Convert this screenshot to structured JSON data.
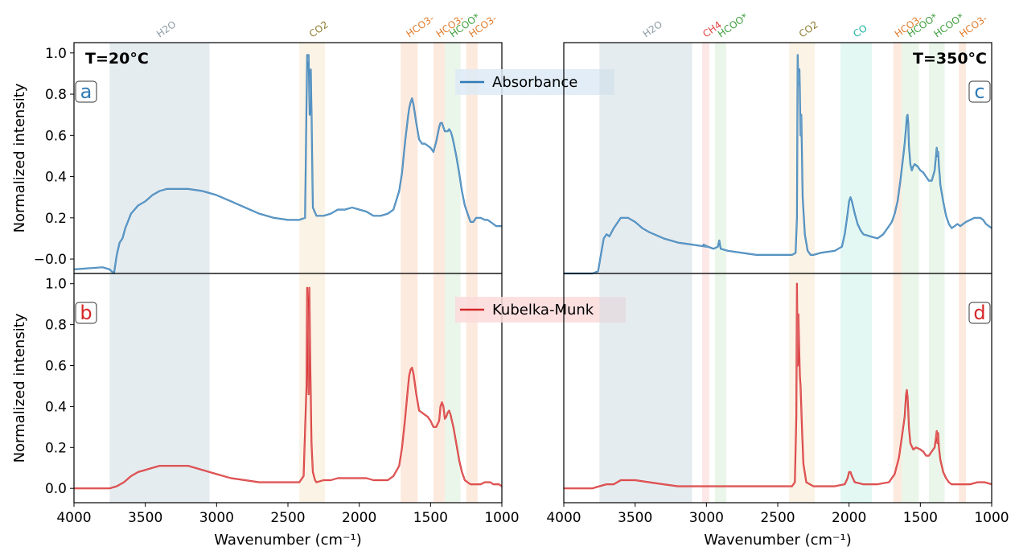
{
  "chart_data": [
    {
      "panel_label": "a",
      "type": "line",
      "temperature_label": "T=20°C",
      "legend": "Absorbance",
      "series_color": "#2f7ab5",
      "ylabel": "Normalized intensity",
      "xlabel": "",
      "xlim": [
        4000,
        1000
      ],
      "ylim": [
        -0.07,
        1.05
      ],
      "yticks": [
        "−0.0",
        "0.2",
        "0.4",
        "0.6",
        "0.8",
        "1.0"
      ],
      "xticks": [],
      "bands": [
        {
          "label": "H2O",
          "from": 3750,
          "to": 3050,
          "color": "#cfdde4",
          "label_color": "#8a9aa3"
        },
        {
          "label": "CO2",
          "from": 2420,
          "to": 2240,
          "color": "#f7e9cf",
          "label_color": "#8c7a2f"
        },
        {
          "label": "HCO3-",
          "from": 1710,
          "to": 1590,
          "color": "#fbd9c4",
          "label_color": "#e07a2a"
        },
        {
          "label": "HCO3-",
          "from": 1480,
          "to": 1400,
          "color": "#fbd9c4",
          "label_color": "#e07a2a"
        },
        {
          "label": "HCOO*",
          "from": 1400,
          "to": 1290,
          "color": "#d9eed7",
          "label_color": "#3e9e3e"
        },
        {
          "label": "HCO3-",
          "from": 1250,
          "to": 1170,
          "color": "#fbd9c4",
          "label_color": "#e07a2a"
        }
      ],
      "x": [
        4000,
        3800,
        3750,
        3720,
        3700,
        3680,
        3660,
        3640,
        3600,
        3550,
        3500,
        3450,
        3400,
        3350,
        3300,
        3250,
        3200,
        3100,
        3000,
        2900,
        2800,
        2700,
        2600,
        2500,
        2420,
        2380,
        2365,
        2360,
        2355,
        2348,
        2340,
        2335,
        2325,
        2300,
        2250,
        2200,
        2150,
        2100,
        2050,
        2000,
        1950,
        1900,
        1850,
        1800,
        1760,
        1720,
        1700,
        1680,
        1660,
        1650,
        1640,
        1630,
        1620,
        1600,
        1580,
        1560,
        1540,
        1520,
        1500,
        1480,
        1460,
        1440,
        1430,
        1420,
        1410,
        1400,
        1390,
        1380,
        1370,
        1360,
        1350,
        1340,
        1320,
        1300,
        1280,
        1260,
        1240,
        1220,
        1200,
        1180,
        1150,
        1120,
        1100,
        1080,
        1060,
        1040,
        1020,
        1000
      ],
      "y": [
        -0.05,
        -0.04,
        -0.05,
        -0.07,
        0.02,
        0.08,
        0.1,
        0.15,
        0.22,
        0.26,
        0.28,
        0.31,
        0.33,
        0.34,
        0.34,
        0.34,
        0.34,
        0.33,
        0.31,
        0.28,
        0.25,
        0.22,
        0.2,
        0.19,
        0.19,
        0.2,
        0.99,
        0.96,
        0.99,
        0.7,
        0.92,
        0.72,
        0.25,
        0.21,
        0.21,
        0.22,
        0.24,
        0.24,
        0.25,
        0.24,
        0.23,
        0.21,
        0.21,
        0.22,
        0.24,
        0.33,
        0.42,
        0.56,
        0.68,
        0.73,
        0.76,
        0.78,
        0.75,
        0.66,
        0.58,
        0.56,
        0.56,
        0.55,
        0.54,
        0.52,
        0.57,
        0.64,
        0.66,
        0.66,
        0.64,
        0.62,
        0.62,
        0.62,
        0.63,
        0.62,
        0.6,
        0.57,
        0.5,
        0.42,
        0.33,
        0.26,
        0.22,
        0.18,
        0.18,
        0.2,
        0.2,
        0.19,
        0.19,
        0.18,
        0.17,
        0.16,
        0.16,
        0.16
      ]
    },
    {
      "panel_label": "b",
      "type": "line",
      "temperature_label": "",
      "legend": "Kubelka-Munk",
      "series_color": "#d62728",
      "ylabel": "Normalized intensity",
      "xlabel": "Wavenumber (cm⁻¹)",
      "xlim": [
        4000,
        1000
      ],
      "ylim": [
        -0.07,
        1.05
      ],
      "yticks": [
        "0.0",
        "0.2",
        "0.4",
        "0.6",
        "0.8",
        "1.0"
      ],
      "xticks": [
        "4000",
        "3500",
        "3000",
        "2500",
        "2000",
        "1500",
        "1000"
      ],
      "bands": [
        {
          "label": "",
          "from": 3750,
          "to": 3050,
          "color": "#cfdde4"
        },
        {
          "label": "",
          "from": 2420,
          "to": 2240,
          "color": "#f7e9cf"
        },
        {
          "label": "",
          "from": 1710,
          "to": 1590,
          "color": "#fbd9c4"
        },
        {
          "label": "",
          "from": 1480,
          "to": 1400,
          "color": "#fbd9c4"
        },
        {
          "label": "",
          "from": 1400,
          "to": 1290,
          "color": "#d9eed7"
        },
        {
          "label": "",
          "from": 1250,
          "to": 1170,
          "color": "#fbd9c4"
        }
      ],
      "x": [
        4000,
        3800,
        3750,
        3700,
        3650,
        3600,
        3550,
        3500,
        3450,
        3400,
        3350,
        3300,
        3250,
        3200,
        3150,
        3100,
        3000,
        2900,
        2800,
        2700,
        2600,
        2500,
        2420,
        2390,
        2370,
        2365,
        2360,
        2355,
        2350,
        2345,
        2340,
        2335,
        2325,
        2310,
        2300,
        2250,
        2200,
        2150,
        2100,
        2050,
        2000,
        1950,
        1900,
        1850,
        1800,
        1760,
        1720,
        1700,
        1680,
        1660,
        1650,
        1640,
        1630,
        1620,
        1600,
        1580,
        1560,
        1540,
        1520,
        1500,
        1480,
        1460,
        1440,
        1430,
        1420,
        1410,
        1400,
        1390,
        1380,
        1370,
        1360,
        1350,
        1340,
        1320,
        1300,
        1280,
        1260,
        1240,
        1220,
        1200,
        1180,
        1150,
        1120,
        1100,
        1080,
        1060,
        1040,
        1020,
        1000
      ],
      "y": [
        0.0,
        0.0,
        0.0,
        0.01,
        0.03,
        0.06,
        0.08,
        0.09,
        0.1,
        0.11,
        0.11,
        0.11,
        0.11,
        0.11,
        0.1,
        0.09,
        0.07,
        0.05,
        0.04,
        0.03,
        0.03,
        0.03,
        0.03,
        0.06,
        0.5,
        0.98,
        0.85,
        0.46,
        0.98,
        0.7,
        0.45,
        0.22,
        0.08,
        0.04,
        0.03,
        0.04,
        0.04,
        0.05,
        0.05,
        0.05,
        0.05,
        0.05,
        0.04,
        0.04,
        0.04,
        0.06,
        0.11,
        0.2,
        0.33,
        0.48,
        0.55,
        0.58,
        0.59,
        0.56,
        0.46,
        0.38,
        0.37,
        0.36,
        0.35,
        0.33,
        0.3,
        0.3,
        0.33,
        0.4,
        0.42,
        0.4,
        0.34,
        0.35,
        0.37,
        0.38,
        0.36,
        0.33,
        0.3,
        0.22,
        0.14,
        0.08,
        0.04,
        0.03,
        0.02,
        0.02,
        0.02,
        0.02,
        0.03,
        0.03,
        0.03,
        0.02,
        0.02,
        0.02,
        0.01
      ]
    },
    {
      "panel_label": "c",
      "type": "line",
      "temperature_label": "T=350°C",
      "legend": "",
      "series_color": "#2f7ab5",
      "ylabel": "",
      "xlabel": "",
      "xlim": [
        4000,
        1000
      ],
      "ylim": [
        -0.07,
        1.05
      ],
      "yticks": [],
      "xticks": [],
      "bands": [
        {
          "label": "H2O",
          "from": 3750,
          "to": 3100,
          "color": "#cfdde4",
          "label_color": "#8a9aa3"
        },
        {
          "label": "CH4",
          "from": 3030,
          "to": 2980,
          "color": "#fbd5d5",
          "label_color": "#e04545"
        },
        {
          "label": "HCOO*",
          "from": 2940,
          "to": 2860,
          "color": "#d9eed7",
          "label_color": "#3e9e3e"
        },
        {
          "label": "CO2",
          "from": 2420,
          "to": 2240,
          "color": "#f7e9cf",
          "label_color": "#8c7a2f"
        },
        {
          "label": "CO",
          "from": 2060,
          "to": 1840,
          "color": "#ccf3ea",
          "label_color": "#17b39b"
        },
        {
          "label": "HCO3-",
          "from": 1690,
          "to": 1630,
          "color": "#fbd9c4",
          "label_color": "#e07a2a"
        },
        {
          "label": "HCOO*",
          "from": 1630,
          "to": 1510,
          "color": "#d9eed7",
          "label_color": "#3e9e3e"
        },
        {
          "label": "HCOO*",
          "from": 1440,
          "to": 1330,
          "color": "#d9eed7",
          "label_color": "#3e9e3e"
        },
        {
          "label": "HCO3-",
          "from": 1230,
          "to": 1180,
          "color": "#fbd9c4",
          "label_color": "#e07a2a"
        }
      ],
      "x": [
        4000,
        3800,
        3760,
        3740,
        3720,
        3700,
        3680,
        3650,
        3600,
        3550,
        3500,
        3450,
        3400,
        3300,
        3200,
        3100,
        3000,
        3020,
        2990,
        2950,
        2920,
        2910,
        2900,
        2850,
        2750,
        2650,
        2550,
        2450,
        2400,
        2375,
        2365,
        2360,
        2355,
        2348,
        2340,
        2335,
        2325,
        2310,
        2290,
        2270,
        2250,
        2200,
        2100,
        2050,
        2030,
        2010,
        2000,
        1990,
        1980,
        1960,
        1940,
        1920,
        1900,
        1850,
        1800,
        1760,
        1720,
        1700,
        1680,
        1660,
        1640,
        1620,
        1610,
        1600,
        1595,
        1590,
        1585,
        1580,
        1570,
        1560,
        1550,
        1540,
        1520,
        1500,
        1480,
        1460,
        1440,
        1420,
        1400,
        1390,
        1385,
        1380,
        1375,
        1370,
        1365,
        1360,
        1340,
        1320,
        1300,
        1280,
        1260,
        1240,
        1220,
        1200,
        1180,
        1150,
        1120,
        1100,
        1080,
        1060,
        1040,
        1020,
        1000
      ],
      "y": [
        -0.07,
        -0.07,
        -0.06,
        0.02,
        0.1,
        0.12,
        0.11,
        0.15,
        0.2,
        0.2,
        0.18,
        0.15,
        0.13,
        0.1,
        0.08,
        0.07,
        0.06,
        0.07,
        0.06,
        0.05,
        0.06,
        0.09,
        0.05,
        0.04,
        0.03,
        0.02,
        0.02,
        0.02,
        0.02,
        0.03,
        0.2,
        0.99,
        0.85,
        0.92,
        0.6,
        0.7,
        0.3,
        0.12,
        0.04,
        0.02,
        0.02,
        0.03,
        0.04,
        0.06,
        0.12,
        0.22,
        0.28,
        0.3,
        0.28,
        0.22,
        0.17,
        0.14,
        0.12,
        0.11,
        0.1,
        0.12,
        0.16,
        0.18,
        0.22,
        0.28,
        0.38,
        0.5,
        0.56,
        0.64,
        0.69,
        0.7,
        0.66,
        0.55,
        0.46,
        0.43,
        0.45,
        0.46,
        0.45,
        0.43,
        0.42,
        0.4,
        0.38,
        0.38,
        0.43,
        0.5,
        0.54,
        0.5,
        0.52,
        0.45,
        0.41,
        0.36,
        0.28,
        0.21,
        0.17,
        0.15,
        0.16,
        0.17,
        0.16,
        0.17,
        0.18,
        0.19,
        0.2,
        0.2,
        0.2,
        0.19,
        0.17,
        0.16,
        0.15
      ]
    },
    {
      "panel_label": "d",
      "type": "line",
      "temperature_label": "",
      "legend": "",
      "series_color": "#d62728",
      "ylabel": "",
      "xlabel": "Wavenumber (cm⁻¹)",
      "xlim": [
        4000,
        1000
      ],
      "ylim": [
        -0.07,
        1.05
      ],
      "yticks": [],
      "xticks": [
        "4000",
        "3500",
        "3000",
        "2500",
        "2000",
        "1500",
        "1000"
      ],
      "bands": [
        {
          "label": "",
          "from": 3750,
          "to": 3100,
          "color": "#cfdde4"
        },
        {
          "label": "",
          "from": 3030,
          "to": 2980,
          "color": "#fbd5d5"
        },
        {
          "label": "",
          "from": 2940,
          "to": 2860,
          "color": "#d9eed7"
        },
        {
          "label": "",
          "from": 2420,
          "to": 2240,
          "color": "#f7e9cf"
        },
        {
          "label": "",
          "from": 2060,
          "to": 1840,
          "color": "#ccf3ea"
        },
        {
          "label": "",
          "from": 1690,
          "to": 1630,
          "color": "#fbd9c4"
        },
        {
          "label": "",
          "from": 1630,
          "to": 1510,
          "color": "#d9eed7"
        },
        {
          "label": "",
          "from": 1440,
          "to": 1330,
          "color": "#d9eed7"
        },
        {
          "label": "",
          "from": 1230,
          "to": 1180,
          "color": "#fbd9c4"
        }
      ],
      "x": [
        4000,
        3800,
        3750,
        3700,
        3650,
        3600,
        3550,
        3500,
        3400,
        3300,
        3200,
        3000,
        2800,
        2600,
        2450,
        2400,
        2380,
        2370,
        2365,
        2360,
        2355,
        2350,
        2345,
        2340,
        2330,
        2320,
        2300,
        2250,
        2100,
        2030,
        2010,
        2000,
        1990,
        1980,
        1960,
        1900,
        1800,
        1720,
        1680,
        1650,
        1630,
        1610,
        1600,
        1595,
        1590,
        1585,
        1580,
        1570,
        1550,
        1530,
        1500,
        1480,
        1460,
        1440,
        1420,
        1400,
        1390,
        1385,
        1380,
        1375,
        1370,
        1360,
        1340,
        1320,
        1300,
        1280,
        1260,
        1240,
        1220,
        1200,
        1150,
        1100,
        1050,
        1000
      ],
      "y": [
        0.0,
        0.0,
        0.01,
        0.02,
        0.02,
        0.04,
        0.04,
        0.04,
        0.03,
        0.02,
        0.01,
        0.01,
        0.01,
        0.01,
        0.01,
        0.01,
        0.03,
        0.35,
        1.0,
        0.6,
        0.85,
        0.7,
        0.55,
        0.5,
        0.3,
        0.12,
        0.03,
        0.01,
        0.01,
        0.02,
        0.05,
        0.08,
        0.08,
        0.06,
        0.03,
        0.02,
        0.02,
        0.03,
        0.07,
        0.15,
        0.25,
        0.35,
        0.46,
        0.48,
        0.45,
        0.38,
        0.3,
        0.22,
        0.19,
        0.2,
        0.19,
        0.18,
        0.16,
        0.16,
        0.18,
        0.2,
        0.25,
        0.28,
        0.22,
        0.27,
        0.2,
        0.14,
        0.08,
        0.05,
        0.03,
        0.02,
        0.02,
        0.02,
        0.02,
        0.02,
        0.02,
        0.03,
        0.03,
        0.02
      ]
    }
  ]
}
